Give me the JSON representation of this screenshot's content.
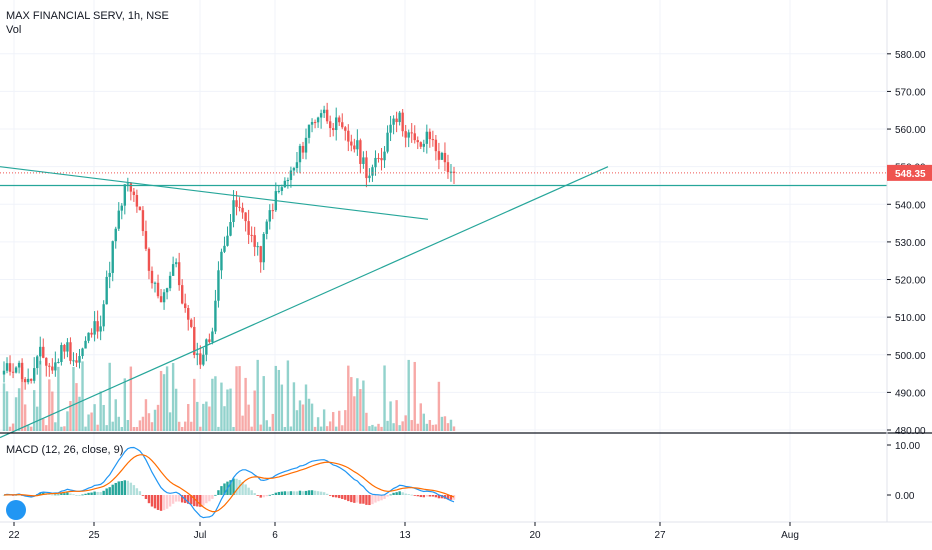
{
  "header": {
    "title": "MAX FINANCIAL SERV, 1h, NSE",
    "volume_label": "Vol"
  },
  "macd": {
    "label": "MACD (12, 26, close, 9)",
    "y_ticks": [
      "10.00",
      "0.00"
    ]
  },
  "price": {
    "last_value": "548.35",
    "y_ticks": [
      "580.00",
      "570.00",
      "560.00",
      "550.00",
      "540.00",
      "530.00",
      "520.00",
      "510.00",
      "500.00",
      "490.00",
      "480.00"
    ]
  },
  "colors": {
    "up": "#26a69a",
    "down": "#ef5350",
    "macd_line": "#2196f3",
    "signal_line": "#ff6d00",
    "trendline": "#26a69a",
    "last_price": "#ef5350"
  },
  "x_ticks": [
    "22",
    "25",
    "Jul",
    "6",
    "13",
    "20",
    "27",
    "Aug"
  ],
  "chart_data": [
    {
      "type": "candlestick",
      "title": "MAX FINANCIAL SERV, 1h, NSE",
      "ylim": [
        480,
        585
      ],
      "grid": true,
      "x": [
        "22",
        "25",
        "Jul",
        "6",
        "13",
        "20",
        "27",
        "Aug"
      ],
      "close_path": [
        495,
        498,
        492,
        500,
        496,
        503,
        498,
        505,
        510,
        530,
        545,
        540,
        520,
        515,
        525,
        510,
        498,
        505,
        530,
        540,
        535,
        525,
        540,
        545,
        550,
        560,
        565,
        562,
        558,
        555,
        548,
        552,
        565,
        560,
        555,
        558,
        552,
        548.35
      ],
      "last_value": 548.35,
      "trendlines": [
        {
          "from": [
            "start",
            550
          ],
          "to": [
            "Jul 4",
            536
          ]
        },
        {
          "from": [
            "start",
            478
          ],
          "to": [
            "Jul 22",
            550
          ]
        },
        {
          "horizontal": 545
        }
      ]
    },
    {
      "type": "bar",
      "title": "Vol"
    },
    {
      "type": "line",
      "title": "MACD (12, 26, close, 9)",
      "ylim": [
        -4,
        11
      ],
      "y_ticks": [
        10,
        0
      ]
    }
  ]
}
